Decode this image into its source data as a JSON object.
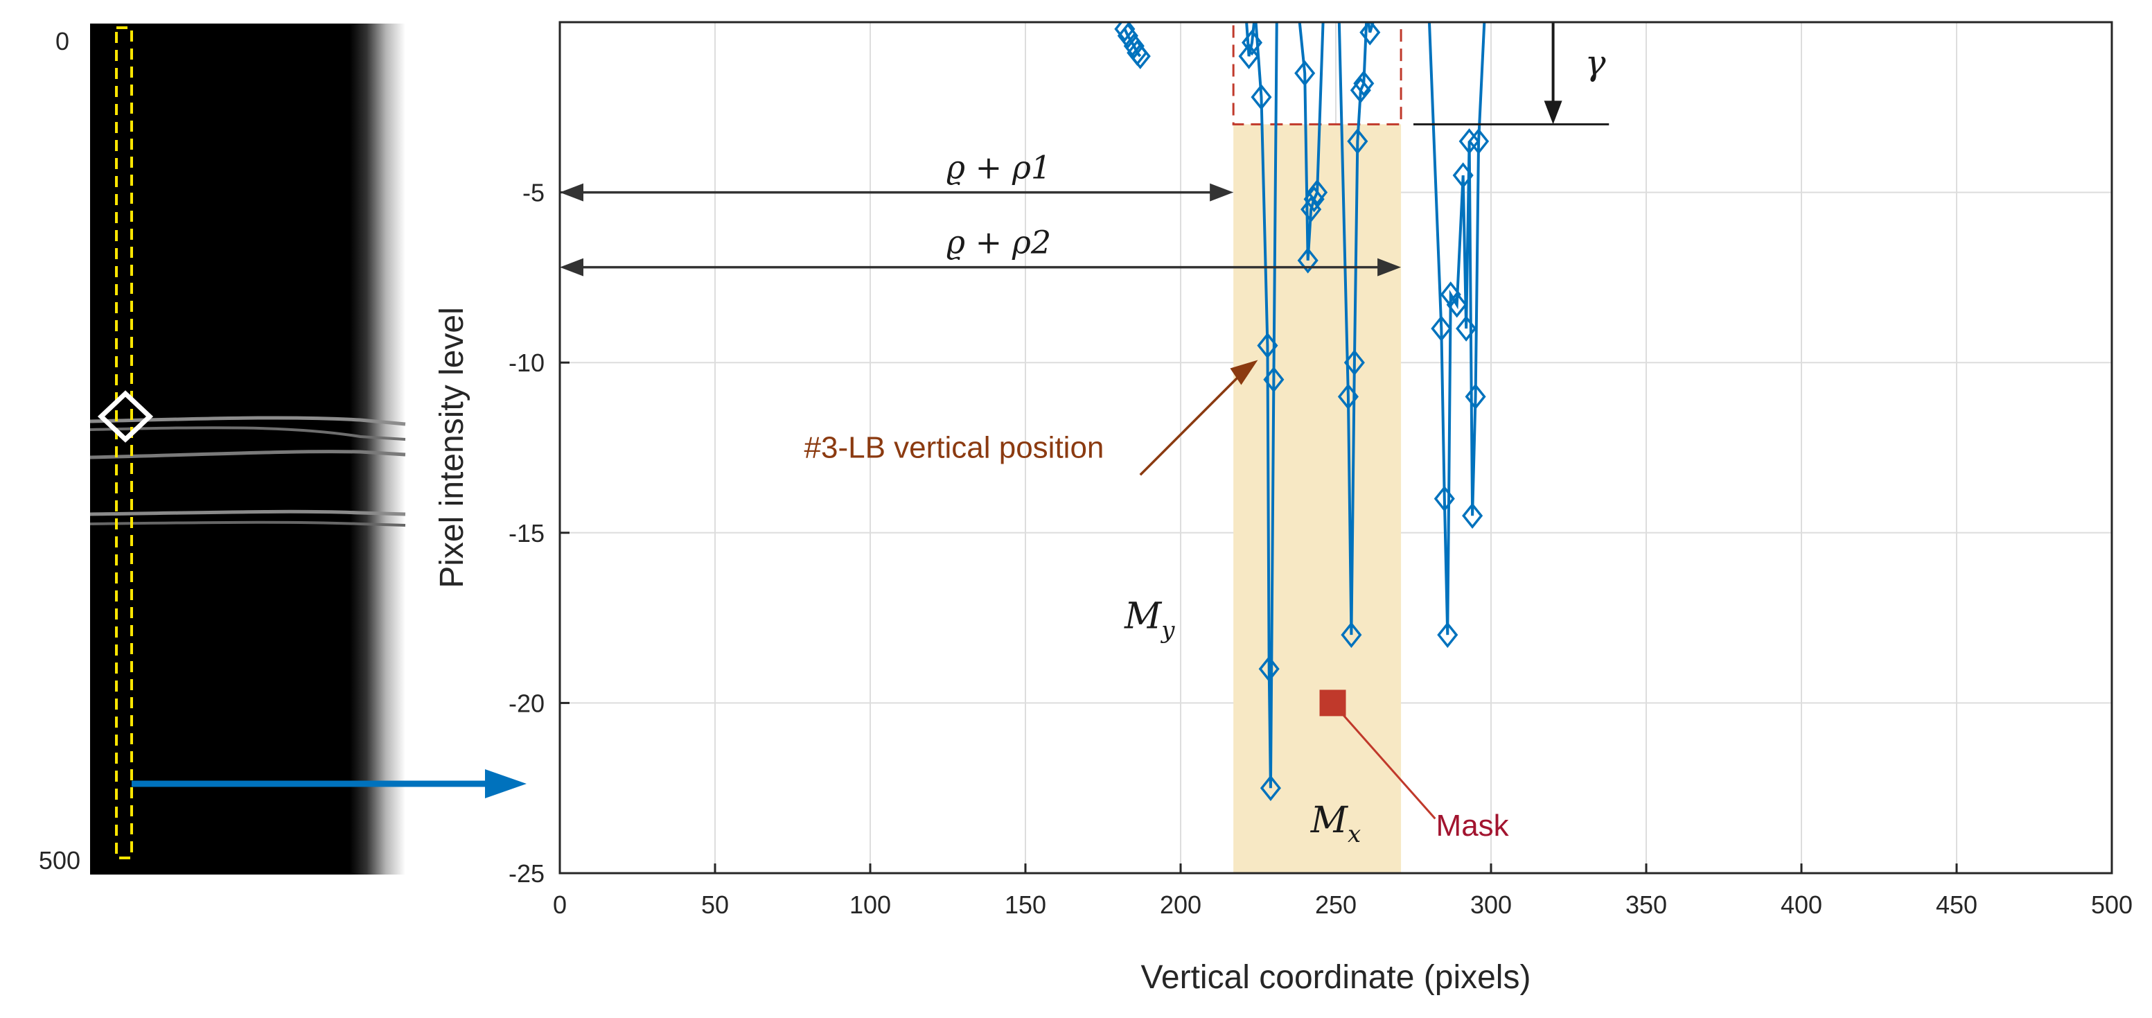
{
  "colors": {
    "series": "#0072BD",
    "arrow_blue": "#0072BD",
    "mask": "#C0392B",
    "mask_label": "#A2142F",
    "annotation_brown": "#8B3A10",
    "region_fill": "#F7E8C4",
    "dash_box": "#C0392B",
    "grid": "#DDDDDD",
    "range_arrow": "#333333",
    "image_bg": "#000000",
    "select_box": "#FFE600"
  },
  "icons": {
    "marker": "diamond-icon",
    "mask_marker": "square-icon"
  },
  "image_panel": {
    "top_label": "0",
    "bottom_label": "500"
  },
  "chart_data": {
    "type": "line",
    "xlabel": "Vertical coordinate (pixels)",
    "ylabel": "Pixel intensity level",
    "xlim": [
      0,
      500
    ],
    "ylim": [
      -25,
      0
    ],
    "xticks": [
      "0",
      "50",
      "100",
      "150",
      "200",
      "250",
      "300",
      "350",
      "400",
      "450",
      "500"
    ],
    "yticks": [
      "-5",
      "-10",
      "-15",
      "-20",
      "-25"
    ],
    "grid": true,
    "series": [
      {
        "marker": "diamond",
        "segments": [
          [
            [
              182,
              -0.2
            ],
            [
              183,
              -0.4
            ],
            [
              185,
              -0.7
            ],
            [
              186,
              -0.9
            ],
            [
              187,
              -1.0
            ]
          ],
          [
            [
              221,
              0.3
            ],
            [
              222,
              -1.0
            ],
            [
              223,
              -0.6
            ],
            [
              224,
              0.3
            ]
          ],
          [
            [
              224,
              0.3
            ],
            [
              226,
              -2.2
            ],
            [
              228,
              -9.5
            ],
            [
              228.5,
              -19.0
            ],
            [
              229,
              -22.5
            ],
            [
              230,
              -10.5
            ],
            [
              231,
              0.3
            ]
          ],
          [
            [
              238,
              0.3
            ],
            [
              240,
              -1.5
            ],
            [
              241,
              -7.0
            ],
            [
              242,
              -5.5
            ],
            [
              243,
              -5.2
            ],
            [
              244,
              -5.0
            ],
            [
              246,
              0.3
            ]
          ],
          [
            [
              251,
              0.3
            ],
            [
              254,
              -11.0
            ],
            [
              255,
              -18.0
            ],
            [
              256,
              -10.0
            ],
            [
              257,
              -3.5
            ],
            [
              258,
              -2.0
            ],
            [
              259,
              -1.8
            ],
            [
              260,
              0.3
            ]
          ],
          [
            [
              260,
              0.3
            ],
            [
              261,
              -0.3
            ],
            [
              263,
              0.3
            ]
          ],
          [
            [
              280,
              0.3
            ],
            [
              284,
              -9.0
            ],
            [
              285,
              -14.0
            ],
            [
              286,
              -18.0
            ],
            [
              287,
              -8.0
            ],
            [
              289,
              -8.3
            ],
            [
              291,
              -4.5
            ],
            [
              292,
              -9.0
            ],
            [
              293,
              -3.5
            ],
            [
              294,
              -14.5
            ],
            [
              295,
              -11.0
            ],
            [
              296,
              -3.5
            ],
            [
              298,
              0.3
            ]
          ]
        ]
      }
    ],
    "mask_point": {
      "x": 249,
      "y": -20,
      "label": "Mask"
    },
    "region": {
      "x": [
        217,
        271
      ],
      "y": [
        -25,
        -3
      ],
      "label_x": "M_x",
      "label_y": "M_y"
    },
    "dashed_box": {
      "x": [
        217,
        271
      ],
      "y": [
        -3,
        0
      ]
    },
    "annotations": [
      {
        "id": "rho1",
        "text": "ϱ + ρ1",
        "sub": "1",
        "from_x": 0,
        "to_x": 217,
        "y": -5
      },
      {
        "id": "rho2",
        "text": "ϱ + ρ2",
        "sub": "2",
        "from_x": 0,
        "to_x": 271,
        "y": -7.2
      },
      {
        "id": "gamma",
        "text": "γ",
        "x": 320,
        "y": -3
      },
      {
        "id": "lb",
        "text": "#3-LB vertical position",
        "point_x": 228,
        "point_y": -9.6
      }
    ]
  }
}
